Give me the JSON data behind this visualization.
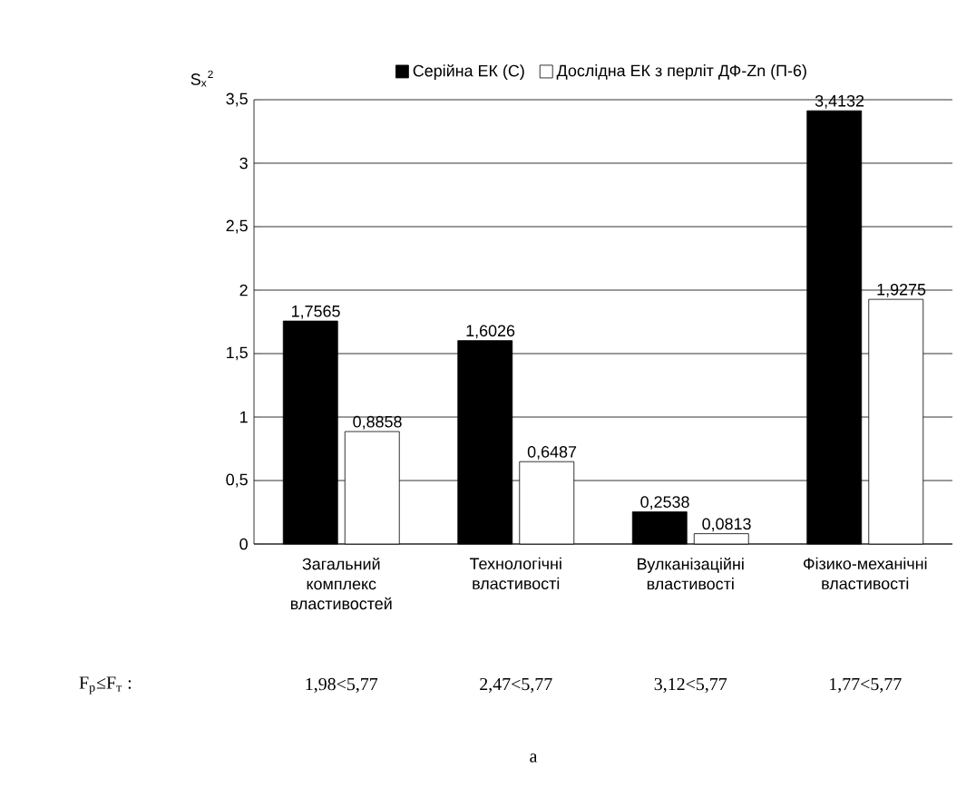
{
  "chart_data": {
    "type": "bar",
    "ylabel": "S$_{x}$$^{2}$",
    "categories": [
      "Загальний комплекс властивостей",
      "Технологічні властивості",
      "Вулканізаційні властивості",
      "Фізико-механічні властивості"
    ],
    "series": [
      {
        "name": "Серійна ЕК (С)",
        "color": "#000000",
        "values": [
          1.7565,
          1.6026,
          0.2538,
          3.4132
        ],
        "value_labels": [
          "1,7565",
          "1,6026",
          "0,2538",
          "3,4132"
        ]
      },
      {
        "name": "Дослідна ЕК з перліт ДФ-Zn (П-6)",
        "color": "#ffffff",
        "values": [
          0.8858,
          0.6487,
          0.0813,
          1.9275
        ],
        "value_labels": [
          "0,8858",
          "0,6487",
          "0,0813",
          "1,9275"
        ]
      }
    ],
    "ylim": [
      0,
      3.5
    ],
    "yticks": [
      0,
      {
        "value": 0.5,
        "label": "0,5"
      },
      1,
      {
        "value": 1.5,
        "label": "1,5"
      },
      2,
      {
        "value": 2.5,
        "label": "2,5"
      },
      3,
      {
        "value": 3.5,
        "label": "3,5"
      }
    ],
    "grid": "y",
    "legend": "top",
    "annotations": [
      "F$_{p}$≤F$_{т}$ :",
      "1,98<5,77",
      "2,47<5,77",
      "3,12<5,77",
      "1,77<5,77",
      "а"
    ]
  }
}
